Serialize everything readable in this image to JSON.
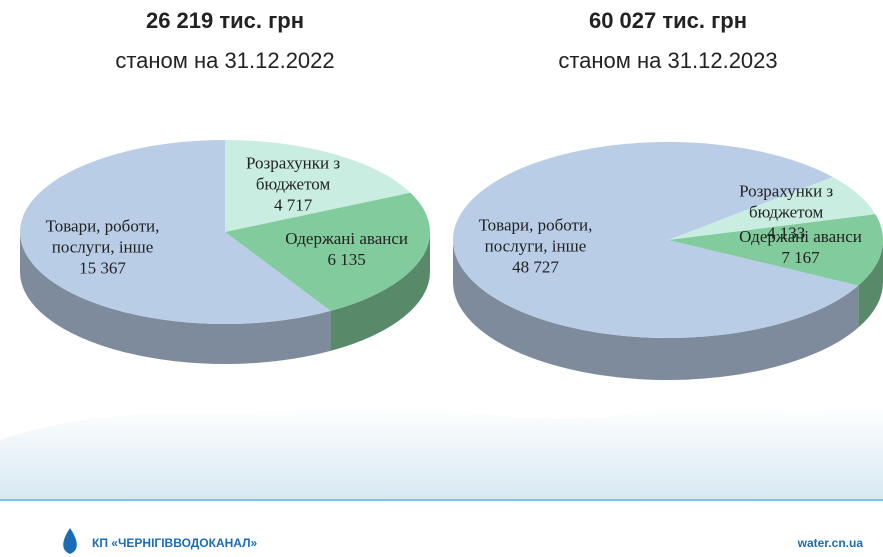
{
  "chart_data": [
    {
      "type": "pie",
      "title": "26 219 тис. грн",
      "subtitle": "станом на 31.12.2022",
      "categories": [
        "Розрахунки з бюджетом",
        "Одержані аванси",
        "Товари, роботи, послуги, інше"
      ],
      "values": [
        4717,
        6135,
        15367
      ],
      "value_labels": [
        "4 717",
        "6 135",
        "15 367"
      ],
      "colors": [
        "#c9ede0",
        "#82cb9c",
        "#b9cde6"
      ]
    },
    {
      "type": "pie",
      "title": "60 027 тис. грн",
      "subtitle": "станом на 31.12.2023",
      "categories": [
        "Розрахунки з бюджетом",
        "Одержані аванси",
        "Товари, роботи, послуги, інше"
      ],
      "values": [
        4133,
        7167,
        48727
      ],
      "value_labels": [
        "4 133",
        "7 167",
        "48 727"
      ],
      "colors": [
        "#c9ede0",
        "#82cb9c",
        "#b9cde6"
      ]
    }
  ],
  "footer": {
    "organization": "КП «ЧЕРНІГІВВОДОКАНАЛ»",
    "website": "water.cn.ua"
  }
}
